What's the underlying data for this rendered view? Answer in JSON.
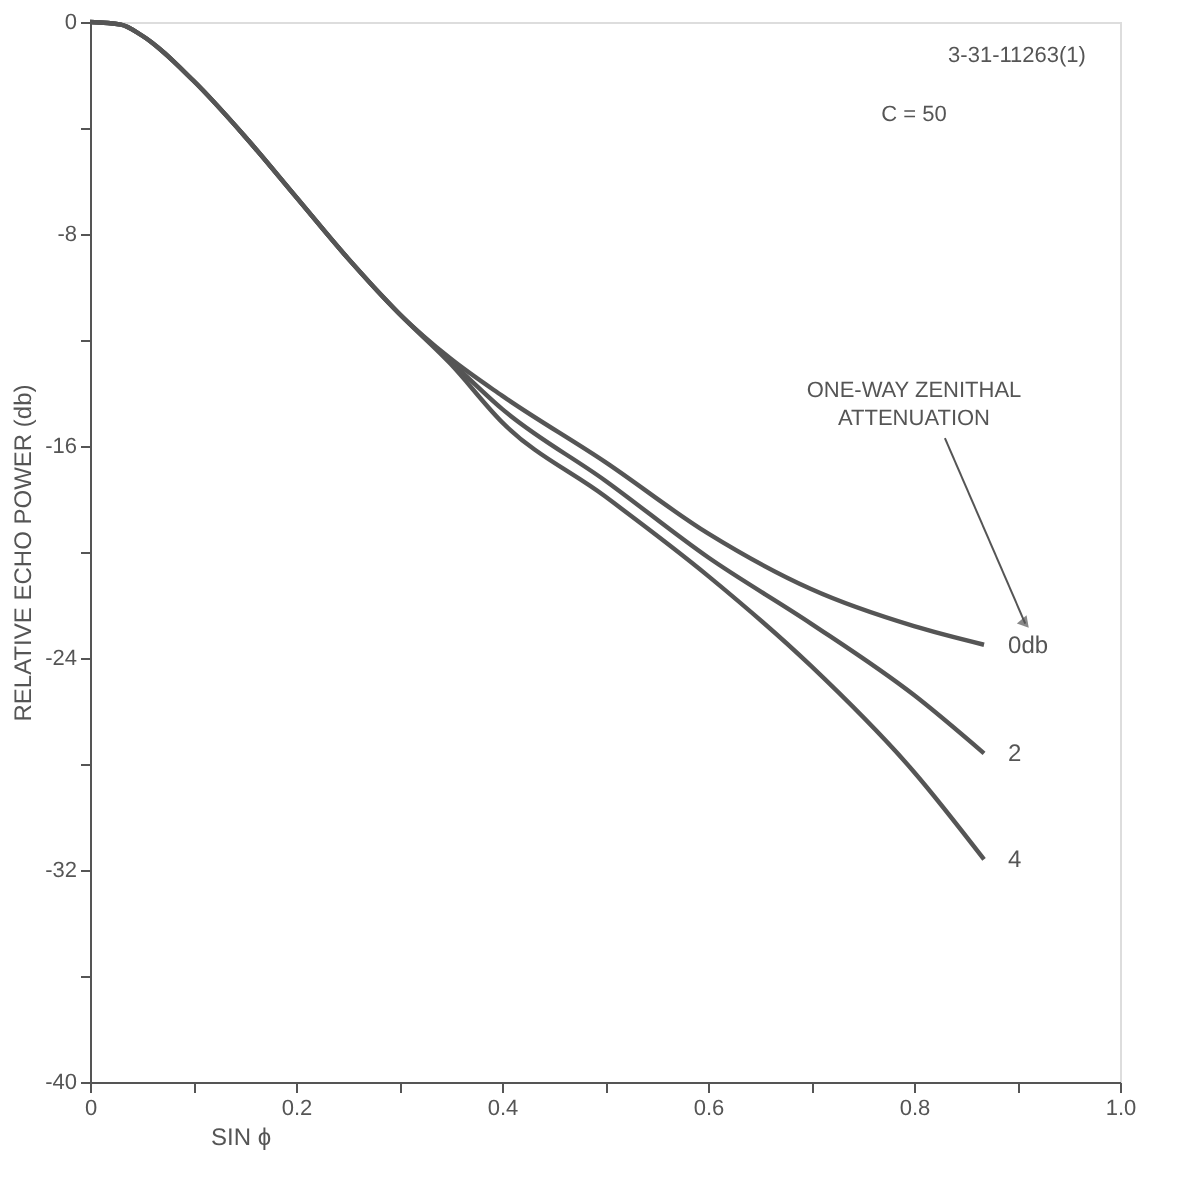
{
  "chart_data": {
    "type": "line",
    "xlabel": "SIN ϕ",
    "ylabel": "RELATIVE ECHO POWER (db)",
    "annotations": [
      "3-31-11263(1)",
      "C = 50",
      "ONE-WAY ZENITHAL ATTENUATION"
    ],
    "x": [
      0,
      0.03,
      0.05,
      0.1,
      0.15,
      0.2,
      0.25,
      0.3,
      0.35,
      0.4,
      0.5,
      0.6,
      0.7,
      0.8,
      0.868
    ],
    "series": [
      {
        "name": "0db",
        "color": "#555555",
        "values": [
          0,
          -0.1,
          -0.5,
          -2.2,
          -4.3,
          -6.6,
          -8.9,
          -11.0,
          -12.7,
          -14.1,
          -16.6,
          -19.3,
          -21.4,
          -22.8,
          -23.5
        ]
      },
      {
        "name": "2",
        "color": "#555555",
        "values": [
          0,
          -0.1,
          -0.5,
          -2.2,
          -4.3,
          -6.6,
          -8.9,
          -11.0,
          -12.8,
          -14.6,
          -17.3,
          -20.2,
          -22.7,
          -25.4,
          -27.6
        ]
      },
      {
        "name": "4",
        "color": "#555555",
        "values": [
          0,
          -0.1,
          -0.5,
          -2.2,
          -4.3,
          -6.6,
          -8.9,
          -11.0,
          -12.9,
          -15.1,
          -17.9,
          -20.9,
          -24.3,
          -28.3,
          -31.6
        ]
      }
    ],
    "xlim": [
      0,
      1.0
    ],
    "ylim": [
      -40,
      0
    ],
    "xticks": [
      0,
      {
        "value": 0.1,
        "label": null
      },
      0.2,
      {
        "value": 0.3,
        "label": null
      },
      0.4,
      {
        "value": 0.5,
        "label": null
      },
      0.6,
      {
        "value": 0.7,
        "label": null
      },
      0.8,
      {
        "value": 0.9,
        "label": null
      },
      {
        "value": 1.0,
        "label": "1.0"
      }
    ],
    "yticks": [
      -40,
      {
        "value": -36,
        "label": null
      },
      -32,
      {
        "value": -28,
        "label": null
      },
      -24,
      {
        "value": -20,
        "label": null
      },
      -16,
      {
        "value": -12,
        "label": null
      },
      -8,
      {
        "value": -4,
        "label": null
      },
      0
    ],
    "grid": false,
    "legend": "right",
    "marker": "none",
    "line_style": "solid"
  }
}
